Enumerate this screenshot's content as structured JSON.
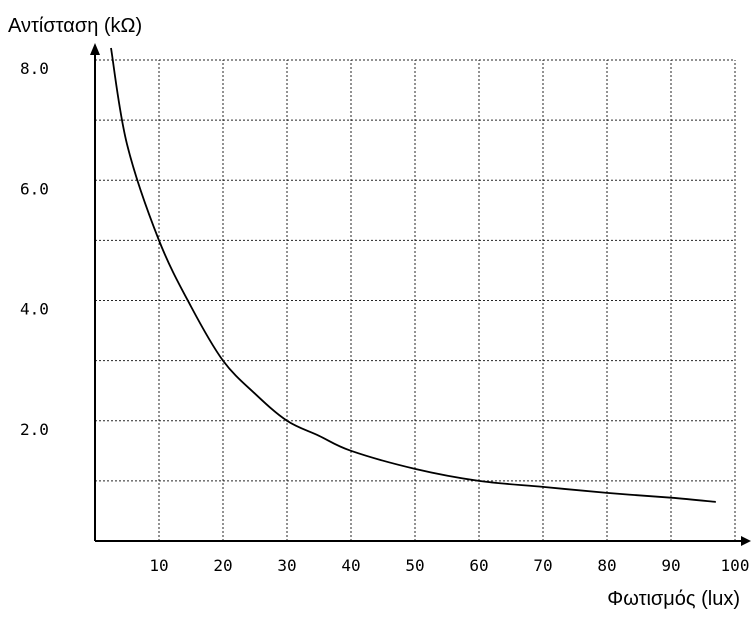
{
  "chart_data": {
    "type": "line",
    "title": "",
    "ylabel": "Αντίσταση (kΩ)",
    "xlabel": "Φωτισμός (lux)",
    "xlim": [
      0,
      100
    ],
    "ylim": [
      0,
      8
    ],
    "grid": true,
    "x_ticks": [
      10,
      20,
      30,
      40,
      50,
      60,
      70,
      80,
      90,
      100
    ],
    "x_tick_labels": [
      "10",
      "20",
      "30",
      "40",
      "50",
      "60",
      "70",
      "80",
      "90",
      "100"
    ],
    "y_ticks": [
      2,
      4,
      6,
      8
    ],
    "y_tick_labels": [
      "2.0",
      "4.0",
      "6.0",
      "8.0"
    ],
    "y_gridlines": [
      1,
      2,
      3,
      4,
      5,
      6,
      7,
      8
    ],
    "series": [
      {
        "x": [
          2.5,
          5,
          10,
          15,
          20,
          25,
          30,
          35,
          40,
          50,
          60,
          70,
          80,
          90,
          97
        ],
        "values": [
          8.2,
          6.6,
          5.0,
          3.9,
          3.0,
          2.45,
          2.0,
          1.75,
          1.5,
          1.2,
          1.0,
          0.9,
          0.8,
          0.72,
          0.65
        ]
      }
    ]
  }
}
